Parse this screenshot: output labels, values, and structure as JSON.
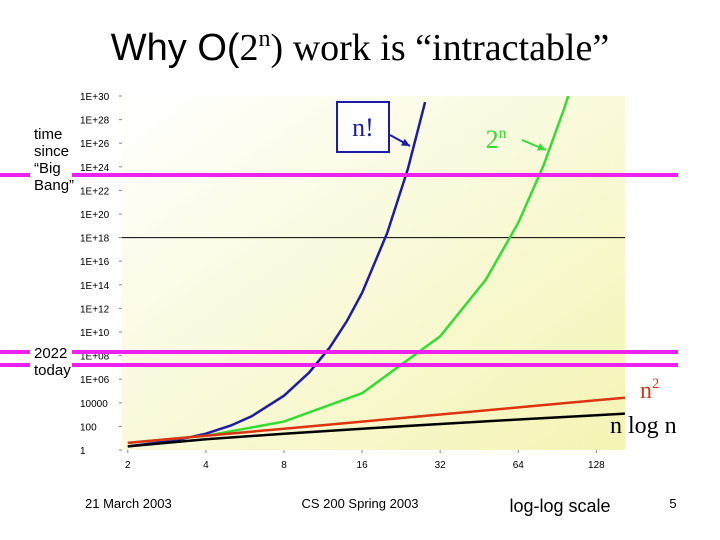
{
  "slide": {
    "title_parts": [
      "Why O(",
      "2",
      "n",
      ") work is “intractable”"
    ],
    "footer_date": "21 March 2003",
    "footer_course": "CS 200 Spring 2003",
    "footer_note": "log-log scale",
    "page_number": "5"
  },
  "chart_data": {
    "type": "line",
    "x_log_base": 2,
    "y_log_base": 10,
    "xlim": [
      1.9,
      165
    ],
    "ylim": [
      1,
      1e+30
    ],
    "xticks": [
      2,
      4,
      8,
      16,
      32,
      64,
      128
    ],
    "yticks": [
      1,
      100,
      10000,
      {
        "value": 1000000.0,
        "label": "1E+06"
      },
      {
        "value": 100000000.0,
        "label": "1E+08"
      },
      {
        "value": 10000000000.0,
        "label": "1E+10"
      },
      {
        "value": 1000000000000.0,
        "label": "1E+12"
      },
      {
        "value": 100000000000000.0,
        "label": "1E+14"
      },
      {
        "value": 1e+16,
        "label": "1E+16"
      },
      {
        "value": 1e+18,
        "label": "1E+18"
      },
      {
        "value": 1e+20,
        "label": "1E+20"
      },
      {
        "value": 1e+22,
        "label": "1E+22"
      },
      {
        "value": 1e+24,
        "label": "1E+24"
      },
      {
        "value": 1e+26,
        "label": "1E+26"
      },
      {
        "value": 1e+28,
        "label": "1E+28"
      },
      {
        "value": 1e+30,
        "label": "1E+30"
      }
    ],
    "series": [
      {
        "name": "n!",
        "color": "#1c1ca8",
        "x": [
          2,
          3,
          4,
          5,
          6,
          8,
          10,
          12,
          14,
          16,
          20,
          24,
          28
        ],
        "values": [
          2,
          6,
          24,
          120,
          720,
          40320,
          3628800,
          479001600,
          87178291200,
          20900000000000.0,
          2.43e+18,
          6.2e+23,
          3.05e+29
        ]
      },
      {
        "name": "2",
        "name_sup": "n",
        "color": "#33dd33",
        "x": [
          2,
          4,
          8,
          16,
          32,
          48,
          64,
          80,
          96,
          100
        ],
        "values": [
          4,
          16,
          256,
          65536,
          4294967296,
          281000000000000.0,
          1.84e+19,
          1.21e+24,
          7.92e+28,
          1.27e+30
        ]
      },
      {
        "name": "n",
        "name_sup": "2",
        "color": "#dd3311",
        "x": [
          2,
          4,
          8,
          16,
          32,
          64,
          128,
          165
        ],
        "values": [
          4,
          16,
          64,
          256,
          1024,
          4096,
          16384,
          27225
        ]
      },
      {
        "name": "n log n",
        "color": "#000000",
        "x": [
          2,
          4,
          8,
          16,
          32,
          64,
          128,
          165
        ],
        "values": [
          2,
          8,
          24,
          64,
          160,
          384,
          896,
          1216
        ]
      }
    ],
    "reference_lines": [
      {
        "color": "#ee22ee",
        "label_lines": [
          "time",
          "since",
          "“Big",
          "Bang”"
        ],
        "values": [
          2e+23
        ]
      },
      {
        "color": "#ee22ee",
        "label_lines": [
          "2022",
          "today"
        ],
        "values": [
          200000000.0,
          16000000.0
        ]
      }
    ]
  }
}
